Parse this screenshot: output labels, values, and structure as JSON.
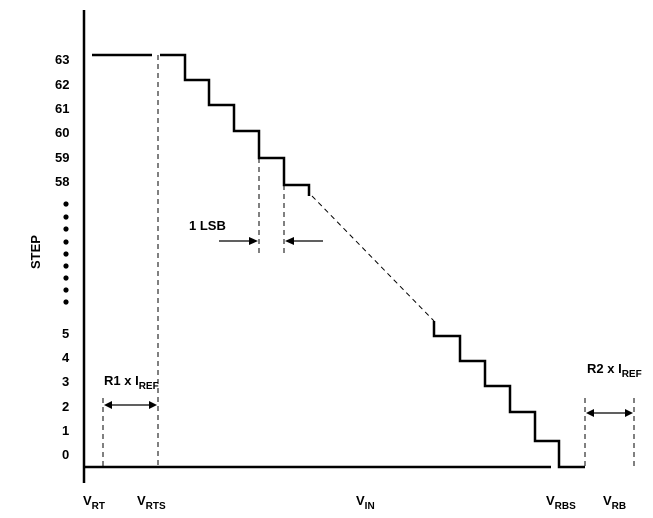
{
  "axis": {
    "y_title": "STEP",
    "y_ticks_top": [
      "63",
      "62",
      "61",
      "60",
      "59",
      "58"
    ],
    "y_ticks_bottom": [
      "5",
      "4",
      "3",
      "2",
      "1",
      "0"
    ],
    "x_labels": {
      "vrt": {
        "main": "V",
        "sub": "RT"
      },
      "vrts": {
        "main": "V",
        "sub": "RTS"
      },
      "vin": {
        "main": "V",
        "sub": "IN"
      },
      "vrbs": {
        "main": "V",
        "sub": "RBS"
      },
      "vrb": {
        "main": "V",
        "sub": "RB"
      }
    }
  },
  "annotations": {
    "lsb": "1 LSB",
    "r1": {
      "main": "R1 x I",
      "sub": "REF"
    },
    "r2": {
      "main": "R2 x I",
      "sub": "REF"
    }
  }
}
